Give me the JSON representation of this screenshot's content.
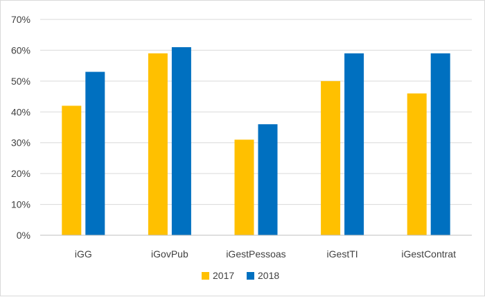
{
  "chart_data": {
    "type": "bar",
    "title": "",
    "xlabel": "",
    "ylabel": "",
    "categories": [
      "iGG",
      "iGovPub",
      "iGestPessoas",
      "iGestTI",
      "iGestContrat"
    ],
    "series": [
      {
        "name": "2017",
        "color": "#FFC000",
        "values": [
          42,
          59,
          31,
          50,
          46
        ]
      },
      {
        "name": "2018",
        "color": "#0070C0",
        "values": [
          53,
          61,
          36,
          59,
          59
        ]
      }
    ],
    "ylim": [
      0,
      70
    ],
    "yticks": [
      0,
      10,
      20,
      30,
      40,
      50,
      60,
      70
    ],
    "ytick_labels": [
      "0%",
      "10%",
      "20%",
      "30%",
      "40%",
      "50%",
      "60%",
      "70%"
    ],
    "grid": true,
    "legend_position": "bottom"
  }
}
